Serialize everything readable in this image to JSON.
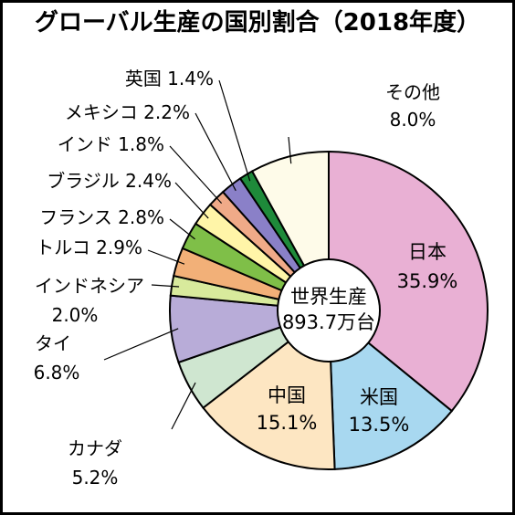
{
  "chart_data": {
    "type": "pie",
    "title": "グローバル生産の国別割合（2018年度）",
    "center_label_line1": "世界生産",
    "center_label_line2": "893.7万台",
    "unit": "%",
    "slices": [
      {
        "name": "日本",
        "value": 35.9,
        "label": "35.9%",
        "color": "#e9b0d4"
      },
      {
        "name": "米国",
        "value": 13.5,
        "label": "13.5%",
        "color": "#a8d8f0"
      },
      {
        "name": "中国",
        "value": 15.1,
        "label": "15.1%",
        "color": "#fde6c2"
      },
      {
        "name": "カナダ",
        "value": 5.2,
        "label": "5.2%",
        "color": "#cfe6d0"
      },
      {
        "name": "タイ",
        "value": 6.8,
        "label": "6.8%",
        "color": "#b8acd8"
      },
      {
        "name": "インドネシア",
        "value": 2.0,
        "label": "2.0%",
        "color": "#d8ea9c"
      },
      {
        "name": "トルコ",
        "value": 2.9,
        "label": "2.9%",
        "color": "#f2b078"
      },
      {
        "name": "フランス",
        "value": 2.8,
        "label": "2.8%",
        "color": "#7fbf48"
      },
      {
        "name": "ブラジル",
        "value": 2.4,
        "label": "2.4%",
        "color": "#fff5a8"
      },
      {
        "name": "インド",
        "value": 1.8,
        "label": "1.8%",
        "color": "#f0aa88"
      },
      {
        "name": "メキシコ",
        "value": 2.2,
        "label": "2.2%",
        "color": "#8a80c8"
      },
      {
        "name": "英国",
        "value": 1.4,
        "label": "1.4%",
        "color": "#1e8a3a"
      },
      {
        "name": "その他",
        "value": 8.0,
        "label": "8.0%",
        "color": "#fefbe9"
      }
    ]
  }
}
